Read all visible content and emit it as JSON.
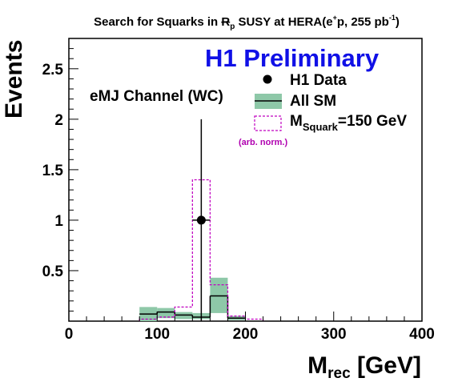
{
  "figure": {
    "title_parts": [
      "Search for Squarks in ",
      "R",
      "p",
      " SUSY at HERA(e",
      "+",
      "p, 255 pb",
      "-1",
      ")"
    ],
    "preliminary_label": "H1 Preliminary",
    "channel_label": "eMJ Channel (WC)",
    "arb_norm_label": "(arb. norm.)",
    "xlabel_main": "M",
    "xlabel_sub": "rec",
    "xlabel_unit": " [GeV]",
    "ylabel": "Events"
  },
  "legend": {
    "data_label": "H1 Data",
    "sm_label": "All SM",
    "signal_main": "M",
    "signal_sub": "Squark",
    "signal_rest": "=150 GeV"
  },
  "colors": {
    "data": "#000000",
    "sm_band": "#8ec8a8",
    "sm_line": "#000000",
    "signal": "#c000c0",
    "preliminary": "#1010e6"
  },
  "chart_data": {
    "type": "histogram",
    "xlim": [
      0,
      400
    ],
    "ylim": [
      0,
      2.8
    ],
    "x_ticks": [
      0,
      100,
      200,
      300,
      400
    ],
    "y_ticks": [
      0.5,
      1,
      1.5,
      2,
      2.5
    ],
    "bin_edges": [
      80,
      100,
      120,
      140,
      160,
      180,
      200
    ],
    "series": [
      {
        "name": "All SM",
        "values": [
          0.07,
          0.09,
          0.06,
          0.04,
          0.25,
          0.03
        ],
        "band_low": [
          0.0,
          0.03,
          0.02,
          0.02,
          0.08,
          0.01
        ],
        "band_high": [
          0.14,
          0.13,
          0.09,
          0.08,
          0.43,
          0.05
        ]
      },
      {
        "name": "M_Squark=150 GeV",
        "bin_edges": [
          80,
          100,
          120,
          140,
          160,
          180,
          200,
          220
        ],
        "values": [
          0.02,
          0.04,
          0.14,
          1.4,
          0.36,
          0.05,
          0.02
        ]
      },
      {
        "name": "H1 Data",
        "points": [
          {
            "x": 150,
            "y": 1,
            "err_low": 1,
            "err_high": 1
          }
        ]
      }
    ]
  }
}
